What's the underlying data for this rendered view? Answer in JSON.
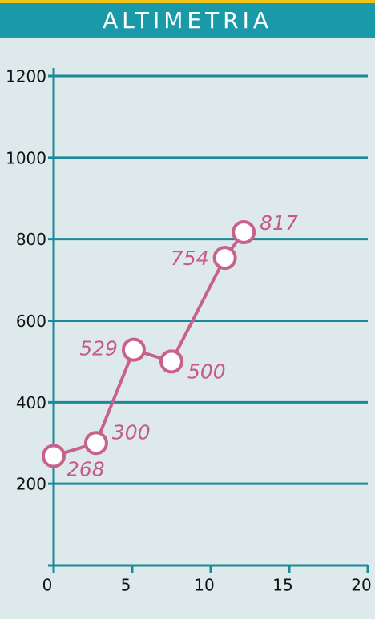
{
  "chart_data": {
    "type": "line",
    "title": "ALTIMETRIA",
    "x": [
      0,
      2.7,
      5.1,
      7.5,
      10.9,
      12.1
    ],
    "series": [
      {
        "color": "#c9628a",
        "values": [
          268,
          300,
          529,
          500,
          754,
          817
        ]
      }
    ],
    "xlim": [
      0,
      20
    ],
    "xticks": [
      0,
      5,
      10,
      15,
      20
    ],
    "ylim": [
      0,
      1200
    ],
    "yticks": [
      200,
      400,
      600,
      800,
      1000,
      1200
    ],
    "grid": true
  }
}
